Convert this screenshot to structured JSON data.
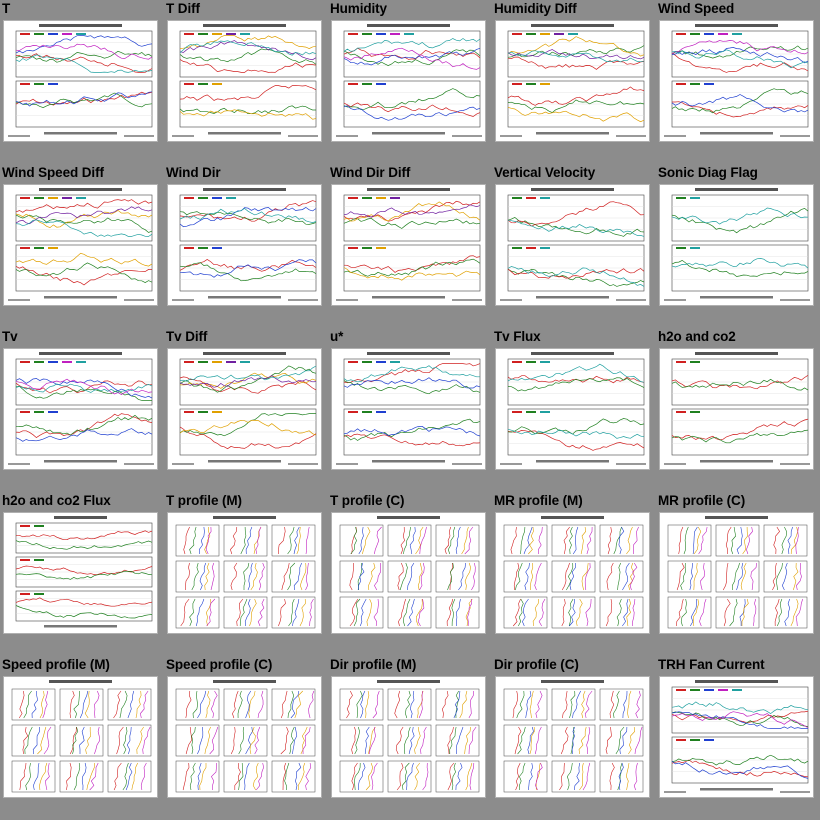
{
  "gallery": {
    "tiles": [
      {
        "title": "T",
        "kind": "ts2",
        "colors": [
          "#d02020",
          "#208020",
          "#2040d0",
          "#c020c0",
          "#20a0a0"
        ]
      },
      {
        "title": "T Diff",
        "kind": "ts2",
        "colors": [
          "#d02020",
          "#208020",
          "#e0a000",
          "#7020a0",
          "#20a0a0"
        ]
      },
      {
        "title": "Humidity",
        "kind": "ts2",
        "colors": [
          "#d02020",
          "#208020",
          "#2040d0",
          "#c020c0",
          "#20a0a0"
        ]
      },
      {
        "title": "Humidity Diff",
        "kind": "ts2",
        "colors": [
          "#d02020",
          "#208020",
          "#e0a000",
          "#7020a0",
          "#20a0a0"
        ]
      },
      {
        "title": "Wind Speed",
        "kind": "ts2",
        "colors": [
          "#d02020",
          "#208020",
          "#2040d0",
          "#c020c0",
          "#20a0a0"
        ]
      },
      {
        "title": "Wind Speed Diff",
        "kind": "ts2",
        "colors": [
          "#d02020",
          "#208020",
          "#e0a000",
          "#7020a0",
          "#20a0a0"
        ]
      },
      {
        "title": "Wind Dir",
        "kind": "ts2",
        "colors": [
          "#d02020",
          "#208020",
          "#2040d0",
          "#20a0a0"
        ]
      },
      {
        "title": "Wind Dir Diff",
        "kind": "ts2",
        "colors": [
          "#d02020",
          "#208020",
          "#e0a000",
          "#7020a0"
        ]
      },
      {
        "title": "Vertical Velocity",
        "kind": "ts2",
        "colors": [
          "#208020",
          "#d02020",
          "#20a0a0"
        ]
      },
      {
        "title": "Sonic Diag Flag",
        "kind": "ts2",
        "colors": [
          "#208020",
          "#20a0a0"
        ]
      },
      {
        "title": "Tv",
        "kind": "ts2",
        "colors": [
          "#d02020",
          "#208020",
          "#2040d0",
          "#c020c0",
          "#20a0a0"
        ]
      },
      {
        "title": "Tv Diff",
        "kind": "ts2",
        "colors": [
          "#d02020",
          "#208020",
          "#e0a000",
          "#7020a0",
          "#20a0a0"
        ]
      },
      {
        "title": "u*",
        "kind": "ts2",
        "colors": [
          "#d02020",
          "#208020",
          "#2040d0",
          "#20a0a0"
        ]
      },
      {
        "title": "Tv Flux",
        "kind": "ts2",
        "colors": [
          "#d02020",
          "#208020",
          "#20a0a0"
        ]
      },
      {
        "title": "h2o and co2",
        "kind": "ts2",
        "colors": [
          "#d02020",
          "#208020"
        ]
      },
      {
        "title": "h2o and co2 Flux",
        "kind": "ts3",
        "colors": [
          "#d02020",
          "#208020"
        ]
      },
      {
        "title": "T profile (M)",
        "kind": "prof",
        "colors": [
          "#d02020",
          "#208020",
          "#2040d0",
          "#e0a000",
          "#c020c0"
        ]
      },
      {
        "title": "T profile (C)",
        "kind": "prof",
        "colors": [
          "#d02020",
          "#208020",
          "#2040d0",
          "#e0a000",
          "#c020c0"
        ]
      },
      {
        "title": "MR profile (M)",
        "kind": "prof",
        "colors": [
          "#d02020",
          "#208020",
          "#2040d0",
          "#e0a000",
          "#c020c0"
        ]
      },
      {
        "title": "MR profile (C)",
        "kind": "prof",
        "colors": [
          "#d02020",
          "#208020",
          "#2040d0",
          "#e0a000",
          "#c020c0"
        ]
      },
      {
        "title": "Speed profile (M)",
        "kind": "prof",
        "colors": [
          "#d02020",
          "#208020",
          "#2040d0",
          "#e0a000",
          "#c020c0"
        ]
      },
      {
        "title": "Speed profile (C)",
        "kind": "prof",
        "colors": [
          "#d02020",
          "#208020",
          "#2040d0",
          "#e0a000",
          "#c020c0"
        ]
      },
      {
        "title": "Dir profile (M)",
        "kind": "prof",
        "colors": [
          "#d02020",
          "#208020",
          "#2040d0",
          "#e0a000",
          "#c020c0"
        ]
      },
      {
        "title": "Dir profile (C)",
        "kind": "prof",
        "colors": [
          "#d02020",
          "#208020",
          "#2040d0",
          "#e0a000",
          "#c020c0"
        ]
      },
      {
        "title": "TRH Fan Current",
        "kind": "ts2",
        "colors": [
          "#d02020",
          "#208020",
          "#2040d0",
          "#c020c0",
          "#20a0a0"
        ]
      }
    ]
  }
}
